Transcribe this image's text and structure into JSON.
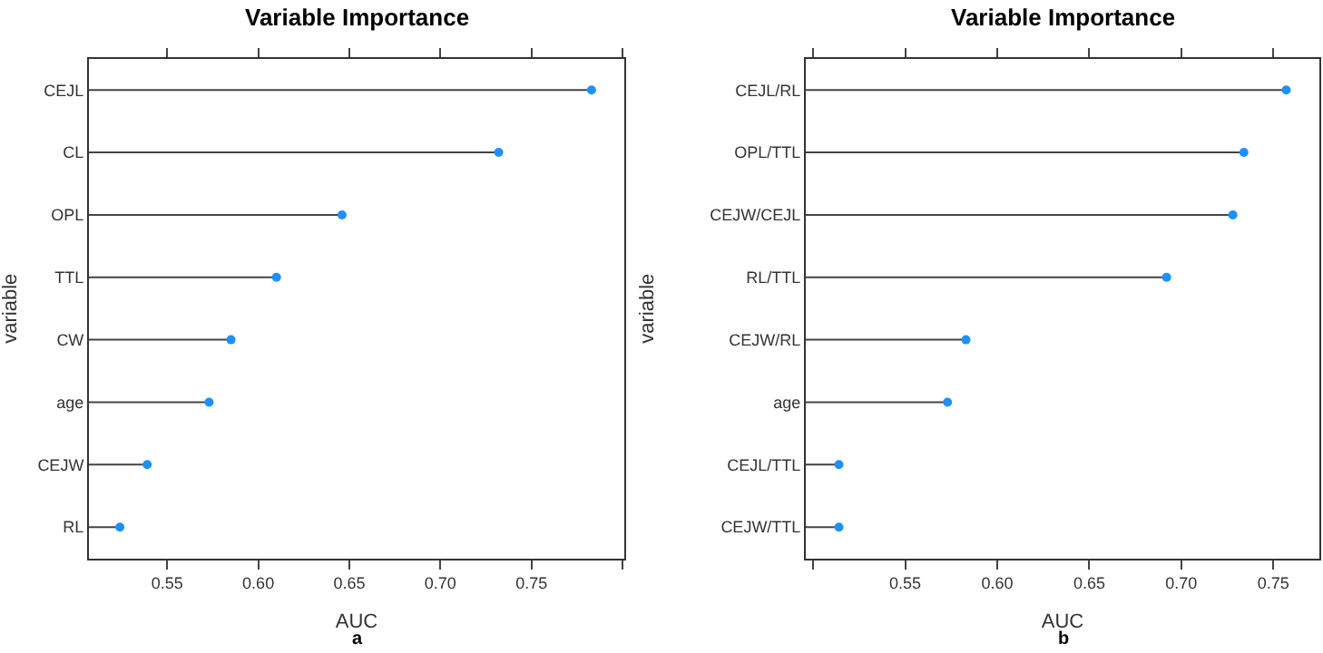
{
  "chart_data": [
    {
      "type": "lollipop",
      "orientation": "horizontal",
      "title": "Variable Importance",
      "xlabel": "AUC",
      "ylabel": "variable",
      "annotations": [
        "a"
      ],
      "categories": [
        "CEJL",
        "CL",
        "OPL",
        "TTL",
        "CW",
        "age",
        "CEJW",
        "RL"
      ],
      "series": [
        {
          "color": "#1e90ff",
          "values": [
            0.783,
            0.732,
            0.646,
            0.61,
            0.585,
            0.573,
            0.539,
            0.524
          ]
        }
      ],
      "xlim": [
        0.507,
        0.801
      ],
      "xticks": [
        0.55,
        {
          "value": 0.6,
          "label": "0.60"
        },
        0.65,
        {
          "value": 0.7,
          "label": "0.70"
        },
        0.75,
        {
          "value": 0.8,
          "label": null
        }
      ],
      "grid": false,
      "marker": "circle"
    },
    {
      "type": "lollipop",
      "orientation": "horizontal",
      "title": "Variable Importance",
      "xlabel": "AUC",
      "ylabel": "variable",
      "annotations": [
        "b"
      ],
      "categories": [
        "CEJL/RL",
        "OPL/TTL",
        "CEJW/CEJL",
        "RL/TTL",
        "CEJW/RL",
        "age",
        "CEJL/TTL",
        "CEJW/TTL"
      ],
      "series": [
        {
          "color": "#1e90ff",
          "values": [
            0.757,
            0.734,
            0.728,
            0.692,
            0.583,
            0.573,
            0.514,
            0.514
          ]
        }
      ],
      "xlim": [
        0.496,
        0.775
      ],
      "xticks": [
        {
          "value": 0.5,
          "label": null
        },
        0.55,
        {
          "value": 0.6,
          "label": "0.60"
        },
        0.65,
        {
          "value": 0.7,
          "label": "0.70"
        },
        0.75
      ],
      "grid": false,
      "marker": "circle"
    }
  ]
}
